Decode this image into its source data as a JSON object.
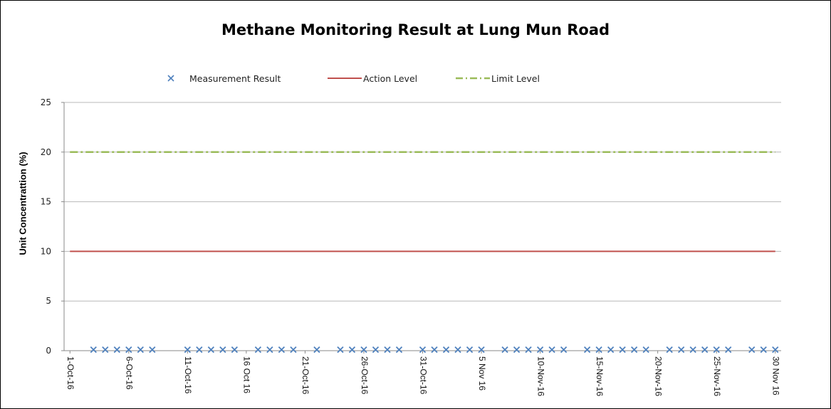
{
  "chart_data": {
    "type": "line",
    "title": "Methane Monitoring Result at Lung Mun Road",
    "ylabel": "Unit Concentrattion (%)",
    "xlabel": "",
    "ylim": [
      0,
      25
    ],
    "yticks": [
      0,
      5,
      10,
      15,
      20,
      25
    ],
    "xlim": [
      "2016-10-01",
      "2016-11-30"
    ],
    "xtick_labels": [
      "1-Oct-16",
      "6-Oct-16",
      "11-Oct-16",
      "16 Oct 16",
      "21-Oct-16",
      "26-Oct-16",
      "31-Oct-16",
      "5 Nov 16",
      "10-Nov-16",
      "15-Nov-16",
      "20-Nov-16",
      "25-Nov-16",
      "30 Nov 16"
    ],
    "xtick_dates": [
      "2016-10-01",
      "2016-10-06",
      "2016-10-11",
      "2016-10-16",
      "2016-10-21",
      "2016-10-26",
      "2016-10-31",
      "2016-11-05",
      "2016-11-10",
      "2016-11-15",
      "2016-11-20",
      "2016-11-25",
      "2016-11-30"
    ],
    "grid": true,
    "legend_position": "top",
    "series": [
      {
        "name": "Measurement Result",
        "kind": "scatter",
        "marker": "x",
        "color": "#4f81bd",
        "x": [
          "2016-10-03",
          "2016-10-04",
          "2016-10-05",
          "2016-10-06",
          "2016-10-07",
          "2016-10-08",
          "2016-10-11",
          "2016-10-12",
          "2016-10-13",
          "2016-10-14",
          "2016-10-15",
          "2016-10-17",
          "2016-10-18",
          "2016-10-19",
          "2016-10-20",
          "2016-10-22",
          "2016-10-24",
          "2016-10-25",
          "2016-10-26",
          "2016-10-27",
          "2016-10-28",
          "2016-10-29",
          "2016-10-31",
          "2016-11-01",
          "2016-11-02",
          "2016-11-03",
          "2016-11-04",
          "2016-11-05",
          "2016-11-07",
          "2016-11-08",
          "2016-11-09",
          "2016-11-10",
          "2016-11-11",
          "2016-11-12",
          "2016-11-14",
          "2016-11-15",
          "2016-11-16",
          "2016-11-17",
          "2016-11-18",
          "2016-11-19",
          "2016-11-21",
          "2016-11-22",
          "2016-11-23",
          "2016-11-24",
          "2016-11-25",
          "2016-11-26",
          "2016-11-28",
          "2016-11-29",
          "2016-11-30"
        ],
        "y": [
          0.1,
          0.1,
          0.1,
          0.1,
          0.1,
          0.1,
          0.1,
          0.1,
          0.1,
          0.1,
          0.1,
          0.1,
          0.1,
          0.1,
          0.1,
          0.1,
          0.1,
          0.1,
          0.1,
          0.1,
          0.1,
          0.1,
          0.1,
          0.1,
          0.1,
          0.1,
          0.1,
          0.1,
          0.1,
          0.1,
          0.1,
          0.1,
          0.1,
          0.1,
          0.1,
          0.1,
          0.1,
          0.1,
          0.1,
          0.1,
          0.1,
          0.1,
          0.1,
          0.1,
          0.1,
          0.1,
          0.1,
          0.1,
          0.1
        ]
      },
      {
        "name": "Action Level",
        "kind": "line",
        "style": "solid",
        "color": "#c0504d",
        "x": [
          "2016-10-01",
          "2016-11-30"
        ],
        "y": [
          10,
          10
        ]
      },
      {
        "name": "Limit Level",
        "kind": "line",
        "style": "dash-dot",
        "color": "#9bbb59",
        "x": [
          "2016-10-01",
          "2016-11-30"
        ],
        "y": [
          20,
          20
        ]
      }
    ]
  }
}
